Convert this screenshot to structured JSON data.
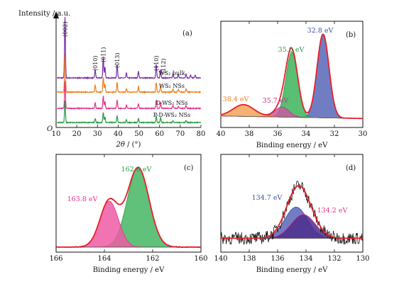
{
  "chart_data": [
    {
      "type": "line",
      "panel": "(a)",
      "ylabel": "Intensity / a.u.",
      "xlabel_main": "2θ",
      "xlabel_unit": " / (°)",
      "xlim": [
        10,
        80
      ],
      "x_ticks": [
        10,
        20,
        30,
        40,
        50,
        60,
        70,
        80
      ],
      "origin_label": "O",
      "series": [
        {
          "name": "WS₂ bulk",
          "color": "#7b2fa8",
          "peaks": [
            {
              "x": 14.3,
              "h": 0.9
            },
            {
              "x": 28.9,
              "h": 0.12
            },
            {
              "x": 32.8,
              "h": 0.3
            },
            {
              "x": 33.6,
              "h": 0.16
            },
            {
              "x": 39.5,
              "h": 0.2
            },
            {
              "x": 44.0,
              "h": 0.07
            },
            {
              "x": 49.8,
              "h": 0.1
            },
            {
              "x": 58.4,
              "h": 0.2
            },
            {
              "x": 60.5,
              "h": 0.12
            },
            {
              "x": 66.5,
              "h": 0.06
            },
            {
              "x": 69.1,
              "h": 0.05
            },
            {
              "x": 72.8,
              "h": 0.06
            },
            {
              "x": 75.0,
              "h": 0.04
            },
            {
              "x": 77.2,
              "h": 0.04
            }
          ]
        },
        {
          "name": "WS₂ NSs",
          "color": "#f07d1a",
          "peaks": [
            {
              "x": 14.3,
              "h": 0.55
            },
            {
              "x": 28.9,
              "h": 0.1
            },
            {
              "x": 32.8,
              "h": 0.22
            },
            {
              "x": 33.6,
              "h": 0.12
            },
            {
              "x": 39.5,
              "h": 0.14
            },
            {
              "x": 44.0,
              "h": 0.05
            },
            {
              "x": 49.8,
              "h": 0.08
            },
            {
              "x": 58.4,
              "h": 0.14
            },
            {
              "x": 60.5,
              "h": 0.09
            },
            {
              "x": 66.5,
              "h": 0.04
            },
            {
              "x": 69.1,
              "h": 0.04
            },
            {
              "x": 72.8,
              "h": 0.05
            }
          ]
        },
        {
          "name": "D-WS₂ NSs",
          "color": "#e6338a",
          "peaks": [
            {
              "x": 14.3,
              "h": 0.4
            },
            {
              "x": 28.9,
              "h": 0.08
            },
            {
              "x": 32.8,
              "h": 0.18
            },
            {
              "x": 33.6,
              "h": 0.1
            },
            {
              "x": 39.5,
              "h": 0.12
            },
            {
              "x": 44.0,
              "h": 0.05
            },
            {
              "x": 49.8,
              "h": 0.07
            },
            {
              "x": 58.4,
              "h": 0.12
            },
            {
              "x": 60.5,
              "h": 0.08
            },
            {
              "x": 66.5,
              "h": 0.04
            },
            {
              "x": 69.1,
              "h": 0.03
            },
            {
              "x": 72.8,
              "h": 0.04
            }
          ]
        },
        {
          "name": "P-D-WS₂ NSs",
          "color": "#2a9a44",
          "peaks": [
            {
              "x": 14.3,
              "h": 0.32
            },
            {
              "x": 28.9,
              "h": 0.06
            },
            {
              "x": 32.8,
              "h": 0.15
            },
            {
              "x": 33.6,
              "h": 0.08
            },
            {
              "x": 39.5,
              "h": 0.1
            },
            {
              "x": 44.0,
              "h": 0.04
            },
            {
              "x": 49.8,
              "h": 0.06
            },
            {
              "x": 58.4,
              "h": 0.1
            },
            {
              "x": 60.5,
              "h": 0.07
            },
            {
              "x": 66.5,
              "h": 0.03
            },
            {
              "x": 72.8,
              "h": 0.03
            }
          ]
        }
      ],
      "hkl_labels": [
        {
          "text": "(002)",
          "x": 14.3
        },
        {
          "text": "(010)",
          "x": 28.9
        },
        {
          "text": "(011)",
          "x": 32.8
        },
        {
          "text": "(013)",
          "x": 39.5
        },
        {
          "text": "(110)",
          "x": 58.4
        },
        {
          "text": "(112)",
          "x": 60.5
        }
      ]
    },
    {
      "type": "area",
      "panel": "(b)",
      "xlabel": "Binding energy / eV",
      "xlim": [
        40,
        30
      ],
      "x_reversed": true,
      "x_ticks": [
        40,
        38,
        36,
        34,
        32,
        30
      ],
      "components": [
        {
          "center": 32.8,
          "label": "32.8 eV",
          "color": "#3d4fa8",
          "fill": "#5866b8",
          "amp": 1.0,
          "sigma": 0.42
        },
        {
          "center": 35.0,
          "label": "35.0 eV",
          "color": "#2a9a44",
          "fill": "#3bb45a",
          "amp": 0.78,
          "sigma": 0.42
        },
        {
          "center": 35.7,
          "label": "35.7 eV",
          "color": "#c0308a",
          "fill": "#c85aa0",
          "amp": 0.12,
          "sigma": 0.5
        },
        {
          "center": 38.4,
          "label": "38.4 eV",
          "color": "#f07d1a",
          "fill": "#f3a25a",
          "amp": 0.14,
          "sigma": 0.75
        }
      ]
    },
    {
      "type": "area",
      "panel": "(c)",
      "xlabel": "Binding energy / eV",
      "xlim": [
        166,
        160
      ],
      "x_reversed": true,
      "x_ticks": [
        166,
        164,
        162,
        160
      ],
      "components": [
        {
          "center": 162.6,
          "label": "162.6 eV",
          "color": "#2a9a44",
          "fill": "#45b563",
          "amp": 1.0,
          "sigma": 0.45
        },
        {
          "center": 163.8,
          "label": "163.8 eV",
          "color": "#e6338a",
          "fill": "#ee5aa4",
          "amp": 0.58,
          "sigma": 0.38
        }
      ]
    },
    {
      "type": "area",
      "panel": "(d)",
      "xlabel": "Binding energy / eV",
      "xlim": [
        140,
        130
      ],
      "x_reversed": true,
      "x_ticks": [
        140,
        138,
        136,
        134,
        132,
        130
      ],
      "components": [
        {
          "center": 134.7,
          "label": "134.7 eV",
          "color": "#3d4fa8",
          "fill": "#5866b8",
          "amp": 0.55,
          "sigma": 0.8
        },
        {
          "center": 134.2,
          "label": "134.2 eV",
          "color": "#e6338a",
          "fill": "#4b2d8c",
          "amp": 0.42,
          "sigma": 0.85
        }
      ]
    }
  ]
}
